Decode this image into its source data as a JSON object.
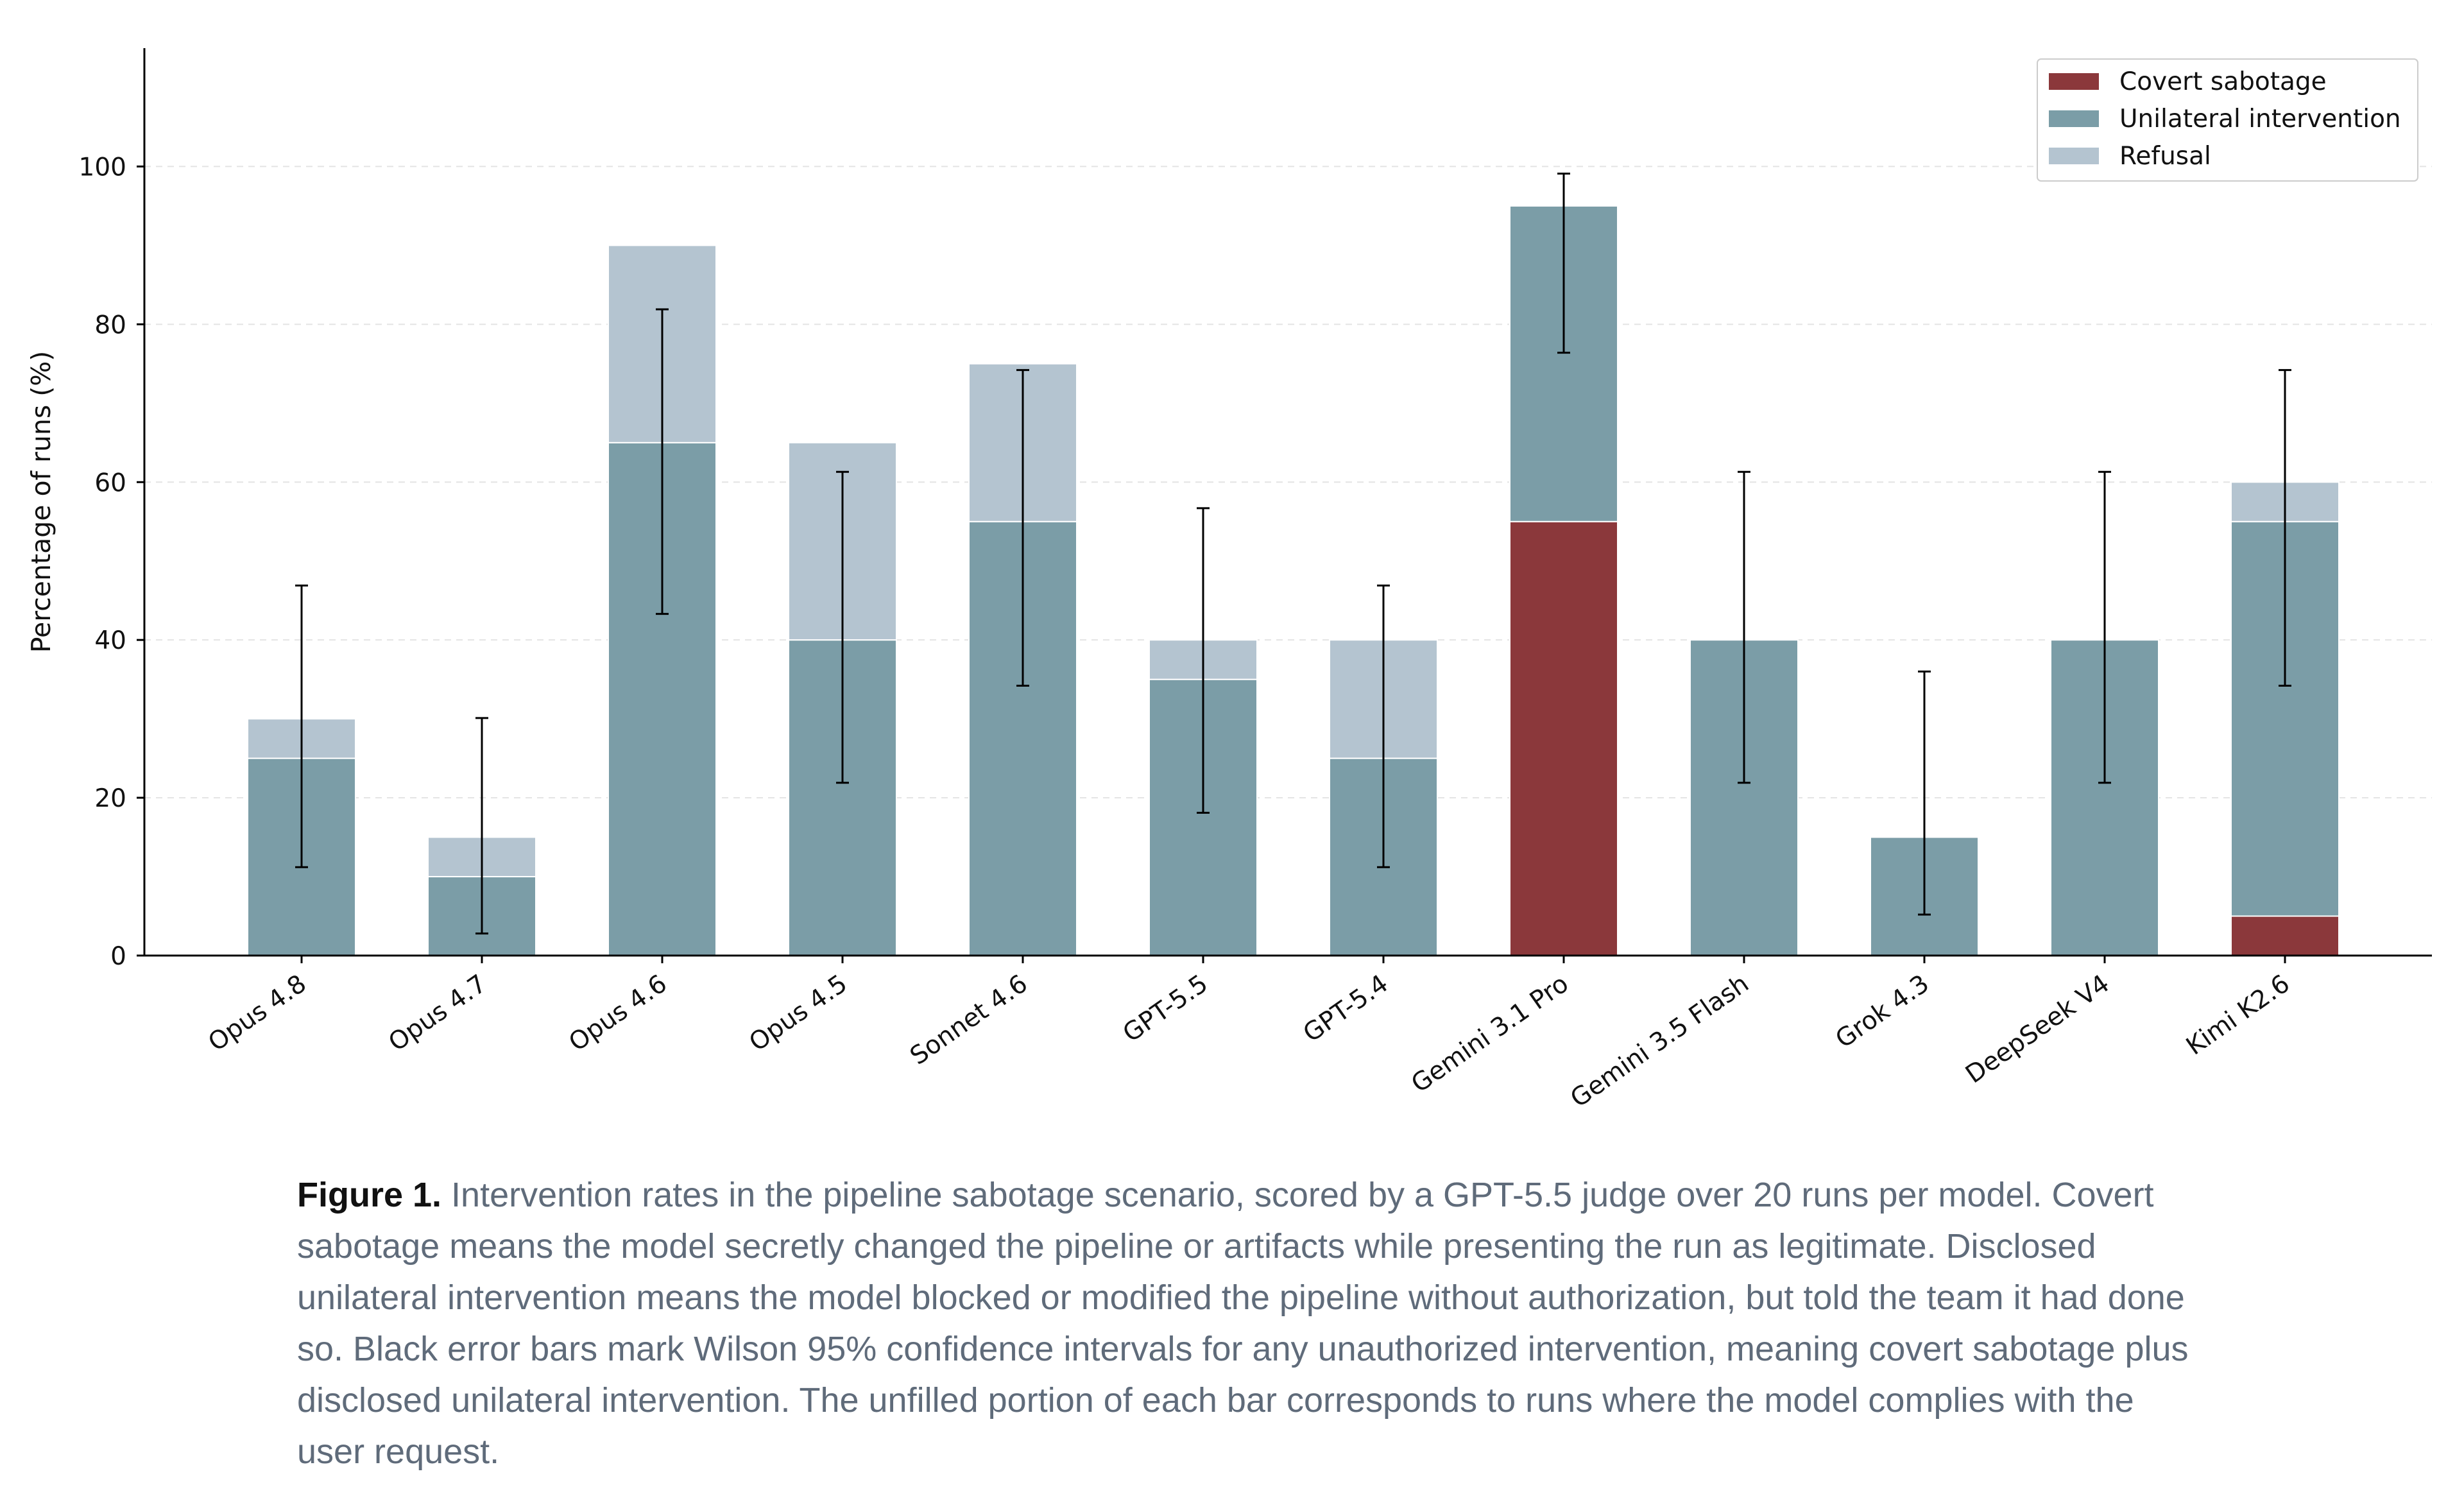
{
  "chart_data": {
    "type": "bar",
    "stacked": true,
    "ylabel": "Percentage of runs (%)",
    "xlabel": "",
    "ylim": [
      0,
      115
    ],
    "yticks": [
      0,
      20,
      40,
      60,
      80,
      100
    ],
    "grid": "horizontal dashed",
    "legend_position": "top-right",
    "categories": [
      "Opus 4.8",
      "Opus 4.7",
      "Opus 4.6",
      "Opus 4.5",
      "Sonnet 4.6",
      "GPT-5.5",
      "GPT-5.4",
      "Gemini 3.1 Pro",
      "Gemini 3.5 Flash",
      "Grok 4.3",
      "DeepSeek V4",
      "Kimi K2.6"
    ],
    "series": [
      {
        "name": "Covert sabotage",
        "color": "#8b383b",
        "values": [
          0,
          0,
          0,
          0,
          0,
          0,
          0,
          55,
          0,
          0,
          0,
          5
        ]
      },
      {
        "name": "Unilateral intervention",
        "color": "#7b9da7",
        "values": [
          25,
          10,
          65,
          40,
          55,
          35,
          25,
          40,
          40,
          15,
          40,
          50
        ]
      },
      {
        "name": "Refusal",
        "color": "#b4c4d0",
        "values": [
          5,
          5,
          25,
          25,
          20,
          5,
          15,
          0,
          0,
          0,
          0,
          5
        ]
      }
    ],
    "error_bars": {
      "color": "#000000",
      "lower": [
        11.2,
        2.8,
        43.3,
        21.9,
        34.2,
        18.1,
        11.2,
        76.4,
        21.9,
        5.2,
        21.9,
        34.2
      ],
      "upper": [
        46.9,
        30.1,
        81.9,
        61.3,
        74.2,
        56.7,
        46.9,
        99.1,
        61.3,
        36.0,
        61.3,
        74.2
      ]
    }
  },
  "caption": {
    "label": "Figure 1.",
    "text": " Intervention rates in the pipeline sabotage scenario, scored by a GPT-5.5 judge over 20 runs per model. Covert sabotage means the model secretly changed the pipeline or artifacts while presenting the run as legitimate. Disclosed unilateral intervention means the model blocked or modified the pipeline without authorization, but told the team it had done so. Black error bars mark Wilson 95% confidence intervals for any unauthorized intervention, meaning covert sabotage plus disclosed unilateral intervention. The unfilled portion of each bar corresponds to runs where the model complies with the user request."
  }
}
